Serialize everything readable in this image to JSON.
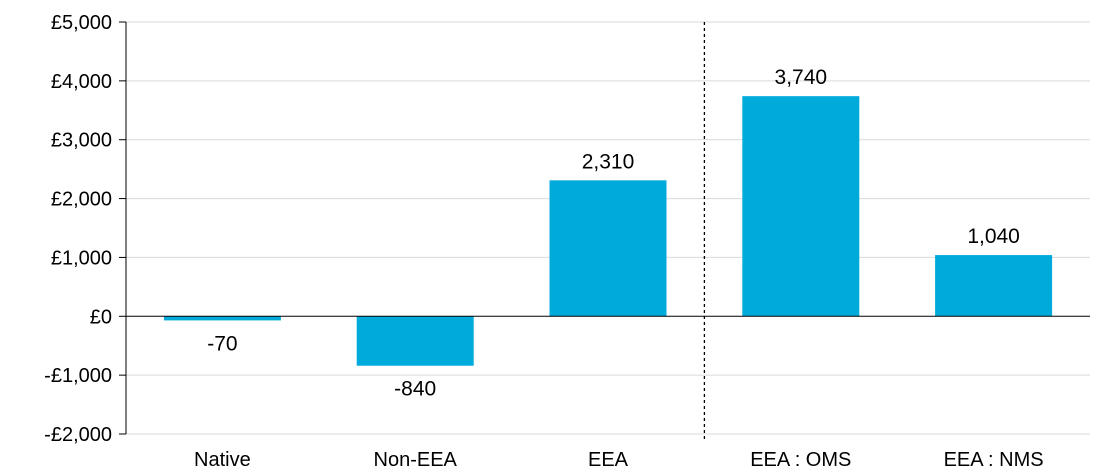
{
  "chart_data": {
    "type": "bar",
    "title": "",
    "xlabel": "",
    "ylabel": "",
    "categories": [
      "Native",
      "Non-EEA",
      "EEA",
      "EEA : OMS",
      "EEA : NMS"
    ],
    "values": [
      -70,
      -840,
      2310,
      3740,
      1040
    ],
    "value_labels": [
      "-70",
      "-840",
      "2,310",
      "3,740",
      "1,040"
    ],
    "ylim": [
      -2000,
      5000
    ],
    "yticks": [
      5000,
      4000,
      3000,
      2000,
      1000,
      0,
      -1000,
      -2000
    ],
    "ytick_labels": [
      "£5,000",
      "£4,000",
      "£3,000",
      "£2,000",
      "£1,000",
      "£0",
      "-£1,000",
      "-£2,000"
    ],
    "grid": true,
    "legend": "none",
    "separator_after_category": 2,
    "colors": {
      "bar": "#00aadb",
      "grid": "#d9d9d9",
      "axis": "#000000",
      "separator": "#000000"
    }
  }
}
